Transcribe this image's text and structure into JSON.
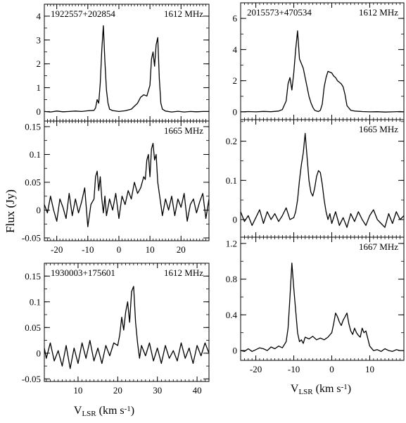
{
  "figure": {
    "ylabel": "Flux (Jy)",
    "left_xlabel": "V_LSR (km s^-1)",
    "right_xlabel": "V_LSR (km s^-1)"
  },
  "chart_data": [
    {
      "type": "line",
      "source": "1922557+202854",
      "label": "1612 MHz",
      "xlim": [
        -24,
        29
      ],
      "ylim": [
        -0.4,
        4.5
      ],
      "xticks": [
        -20,
        -10,
        0,
        10,
        20
      ],
      "yticks": [
        0,
        1,
        2,
        3,
        4
      ],
      "ytick_labels": [
        "0",
        "1",
        "2",
        "3",
        "4"
      ],
      "x": [
        -24,
        -22,
        -20,
        -18,
        -16,
        -14,
        -12,
        -10,
        -8,
        -7.5,
        -7,
        -6.5,
        -6,
        -5.5,
        -5,
        -4.5,
        -4,
        -3.5,
        -3,
        -2,
        0,
        2,
        4,
        6,
        7,
        8,
        9,
        10,
        10.5,
        11,
        11.5,
        12,
        12.5,
        13,
        13.5,
        14,
        15,
        17,
        19,
        21,
        23,
        25,
        27,
        29
      ],
      "y": [
        0.0,
        -0.02,
        0.02,
        -0.01,
        0.0,
        0.02,
        0.0,
        0.03,
        0.05,
        0.15,
        0.5,
        0.35,
        1.2,
        2.6,
        3.6,
        2.1,
        0.9,
        0.35,
        0.1,
        0.04,
        0.0,
        0.03,
        0.1,
        0.35,
        0.6,
        0.7,
        0.65,
        1.1,
        2.2,
        2.5,
        1.9,
        2.8,
        3.1,
        1.4,
        0.35,
        0.1,
        0.02,
        -0.02,
        0.01,
        -0.02,
        0.0,
        -0.01,
        0.0,
        0.0
      ]
    },
    {
      "type": "line",
      "source": "",
      "label": "1665 MHz",
      "xlim": [
        -24,
        29
      ],
      "ylim": [
        -0.055,
        0.16
      ],
      "xticks": [
        -20,
        -10,
        0,
        10,
        20
      ],
      "yticks": [
        -0.05,
        0,
        0.05,
        0.1,
        0.15
      ],
      "ytick_labels": [
        "-0.05",
        "0",
        "0.05",
        "0.1",
        "0.15"
      ],
      "xtick_labels": [
        "-20",
        "-10",
        "0",
        "10",
        "20"
      ],
      "x": [
        -24,
        -23,
        -22,
        -21,
        -20,
        -19,
        -18,
        -17,
        -16,
        -15,
        -14,
        -13,
        -12,
        -11,
        -10,
        -9,
        -8,
        -7.5,
        -7,
        -6.5,
        -6,
        -5.5,
        -5,
        -4.5,
        -4,
        -3,
        -2,
        -1,
        0,
        1,
        2,
        3,
        4,
        5,
        6,
        7,
        8,
        8.5,
        9,
        9.5,
        10,
        10.5,
        11,
        11.5,
        12,
        12.5,
        13,
        13.5,
        14,
        15,
        16,
        17,
        18,
        19,
        20,
        21,
        22,
        23,
        24,
        25,
        26,
        27,
        28,
        29
      ],
      "y": [
        0.01,
        -0.005,
        0.025,
        0.0,
        -0.02,
        0.02,
        0.005,
        -0.015,
        0.03,
        -0.01,
        0.02,
        -0.005,
        0.015,
        0.04,
        -0.03,
        0.01,
        0.02,
        0.06,
        0.07,
        0.035,
        0.06,
        0.02,
        -0.005,
        0.025,
        -0.01,
        0.02,
        0.0,
        0.03,
        -0.015,
        0.025,
        0.01,
        0.035,
        0.02,
        0.05,
        0.03,
        0.04,
        0.06,
        0.055,
        0.09,
        0.1,
        0.06,
        0.11,
        0.12,
        0.09,
        0.1,
        0.05,
        0.03,
        0.01,
        -0.01,
        0.02,
        0.0,
        0.025,
        -0.01,
        0.02,
        0.005,
        0.03,
        -0.02,
        0.01,
        0.02,
        -0.005,
        0.015,
        0.03,
        -0.015,
        0.02
      ]
    },
    {
      "type": "line",
      "source": "1930003+175601",
      "label": "1612 MHz",
      "xlim": [
        1.5,
        43
      ],
      "ylim": [
        -0.055,
        0.175
      ],
      "xticks": [
        10,
        20,
        30,
        40
      ],
      "yticks": [
        -0.05,
        0,
        0.05,
        0.1,
        0.15
      ],
      "ytick_labels": [
        "-0.05",
        "0",
        "0.05",
        "0.1",
        "0.15"
      ],
      "xtick_labels": [
        "10",
        "20",
        "30",
        "40"
      ],
      "x": [
        1.5,
        2,
        3,
        4,
        5,
        6,
        7,
        8,
        9,
        10,
        11,
        12,
        13,
        14,
        15,
        16,
        17,
        18,
        19,
        20,
        20.5,
        21,
        21.5,
        22,
        22.5,
        23,
        23.5,
        24,
        24.5,
        25,
        25.5,
        26,
        27,
        28,
        29,
        30,
        31,
        32,
        33,
        34,
        35,
        36,
        37,
        38,
        39,
        40,
        41,
        42,
        43
      ],
      "y": [
        0.01,
        -0.01,
        0.02,
        -0.015,
        0.005,
        -0.025,
        0.015,
        -0.03,
        0.01,
        -0.02,
        0.02,
        -0.01,
        0.025,
        -0.015,
        0.01,
        -0.02,
        0.015,
        -0.005,
        0.02,
        0.015,
        0.035,
        0.07,
        0.045,
        0.08,
        0.1,
        0.06,
        0.12,
        0.13,
        0.06,
        0.02,
        -0.01,
        0.015,
        -0.005,
        0.02,
        -0.015,
        0.01,
        -0.02,
        0.015,
        -0.01,
        0.005,
        -0.015,
        0.02,
        -0.01,
        0.01,
        -0.02,
        0.015,
        -0.005,
        0.02,
        0.0
      ]
    },
    {
      "type": "line",
      "source": "2015573+470534",
      "label": "1612 MHz",
      "xlim": [
        -24,
        19
      ],
      "ylim": [
        -0.5,
        7.0
      ],
      "xticks": [
        -20,
        -10,
        0,
        10
      ],
      "yticks": [
        0,
        2,
        4,
        6
      ],
      "ytick_labels": [
        "0",
        "2",
        "4",
        "6"
      ],
      "x": [
        -24,
        -22,
        -20,
        -18,
        -16,
        -14,
        -13,
        -12,
        -11.5,
        -11,
        -10.5,
        -10,
        -9.5,
        -9,
        -8.5,
        -8,
        -7.5,
        -7,
        -6.5,
        -6,
        -5.5,
        -5,
        -4.5,
        -4,
        -3.5,
        -3,
        -2.5,
        -2,
        -1.5,
        -1,
        -0.5,
        0,
        0.5,
        1,
        1.5,
        2,
        2.5,
        3,
        3.5,
        4,
        5,
        6,
        8,
        10,
        12,
        14,
        16,
        18,
        19
      ],
      "y": [
        0.0,
        0.02,
        0.0,
        0.03,
        0.01,
        0.05,
        0.15,
        0.7,
        1.8,
        2.2,
        1.4,
        2.5,
        4.0,
        5.2,
        3.4,
        3.1,
        2.8,
        2.2,
        1.6,
        1.0,
        0.6,
        0.3,
        0.1,
        0.05,
        0.02,
        0.1,
        0.5,
        1.6,
        2.2,
        2.6,
        2.55,
        2.5,
        2.3,
        2.2,
        2.0,
        1.9,
        1.8,
        1.6,
        1.1,
        0.4,
        0.1,
        0.05,
        0.02,
        0.0,
        0.01,
        -0.01,
        0.0,
        0.02,
        0.0
      ]
    },
    {
      "type": "line",
      "source": "",
      "label": "1665 MHz",
      "xlim": [
        -24,
        19
      ],
      "ylim": [
        -0.045,
        0.255
      ],
      "xticks": [
        -20,
        -10,
        0,
        10
      ],
      "yticks": [
        0,
        0.1,
        0.2
      ],
      "ytick_labels": [
        "0",
        "0.1",
        "0.2"
      ],
      "x": [
        -24,
        -23,
        -22,
        -21,
        -20,
        -19,
        -18,
        -17,
        -16,
        -15,
        -14,
        -13,
        -12,
        -11,
        -10,
        -9.5,
        -9,
        -8.5,
        -8,
        -7.5,
        -7,
        -6.5,
        -6,
        -5.5,
        -5,
        -4.5,
        -4,
        -3.5,
        -3,
        -2.5,
        -2,
        -1.5,
        -1,
        -0.5,
        0,
        1,
        2,
        3,
        4,
        5,
        6,
        7,
        8,
        9,
        10,
        11,
        12,
        13,
        14,
        15,
        16,
        17,
        18,
        19
      ],
      "y": [
        0.02,
        -0.005,
        0.01,
        -0.015,
        0.005,
        0.025,
        -0.01,
        0.02,
        0.0,
        0.015,
        -0.005,
        0.01,
        0.03,
        0.0,
        0.005,
        0.02,
        0.05,
        0.1,
        0.14,
        0.17,
        0.22,
        0.16,
        0.1,
        0.07,
        0.06,
        0.08,
        0.11,
        0.125,
        0.12,
        0.09,
        0.05,
        0.02,
        0.0,
        0.015,
        -0.01,
        0.02,
        -0.015,
        0.005,
        -0.02,
        0.015,
        -0.005,
        0.02,
        0.0,
        -0.015,
        0.01,
        0.025,
        0.0,
        -0.01,
        -0.02,
        0.015,
        -0.01,
        0.02,
        0.0,
        0.01
      ]
    },
    {
      "type": "line",
      "source": "",
      "label": "1667 MHz",
      "xlim": [
        -24,
        19
      ],
      "ylim": [
        -0.11,
        1.27
      ],
      "xticks": [
        -20,
        -10,
        0,
        10
      ],
      "yticks": [
        0,
        0.4,
        0.8,
        1.2
      ],
      "ytick_labels": [
        "0",
        "0.4",
        "0.8",
        "1.2"
      ],
      "xtick_labels": [
        "-20",
        "-10",
        "0",
        "10"
      ],
      "x": [
        -24,
        -23,
        -22,
        -21,
        -20,
        -19,
        -18,
        -17,
        -16,
        -15,
        -14,
        -13,
        -12,
        -11.5,
        -11,
        -10.5,
        -10,
        -9.5,
        -9,
        -8.5,
        -8,
        -7.5,
        -7,
        -6,
        -5,
        -4,
        -3,
        -2,
        -1,
        0,
        0.5,
        1,
        1.5,
        2,
        2.5,
        3,
        3.5,
        4,
        4.5,
        5,
        5.5,
        6,
        6.5,
        7,
        7.5,
        8,
        8.5,
        9,
        10,
        11,
        12,
        13,
        14,
        15,
        16,
        17,
        18,
        19
      ],
      "y": [
        0.0,
        -0.01,
        0.02,
        -0.01,
        0.01,
        0.03,
        0.02,
        0.0,
        0.04,
        0.02,
        0.05,
        0.03,
        0.1,
        0.25,
        0.6,
        0.98,
        0.7,
        0.45,
        0.2,
        0.1,
        0.12,
        0.08,
        0.15,
        0.13,
        0.16,
        0.12,
        0.14,
        0.12,
        0.15,
        0.2,
        0.3,
        0.42,
        0.38,
        0.32,
        0.28,
        0.34,
        0.38,
        0.42,
        0.3,
        0.22,
        0.18,
        0.25,
        0.2,
        0.17,
        0.15,
        0.25,
        0.2,
        0.22,
        0.05,
        0.0,
        0.01,
        -0.01,
        0.02,
        0.0,
        -0.01,
        0.01,
        0.0,
        0.0
      ]
    }
  ]
}
